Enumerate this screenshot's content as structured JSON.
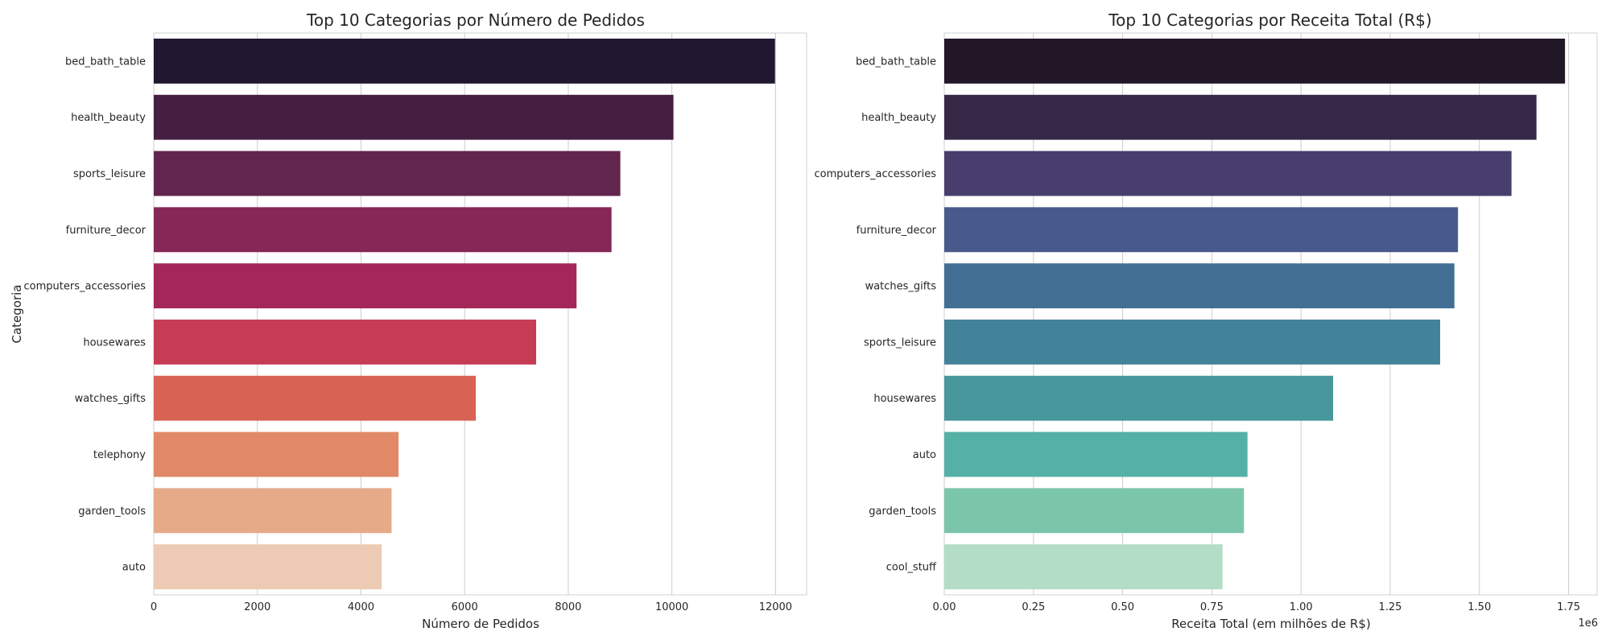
{
  "chart_data": [
    {
      "type": "bar",
      "orientation": "horizontal",
      "title": "Top 10 Categorias por Número de Pedidos",
      "xlabel": "Número de Pedidos",
      "ylabel": "Categoria",
      "xlim": [
        0,
        12600
      ],
      "xticks": [
        0,
        2000,
        4000,
        6000,
        8000,
        10000,
        12000
      ],
      "xtick_labels": [
        "0",
        "2000",
        "4000",
        "6000",
        "8000",
        "10000",
        "12000"
      ],
      "grid": "x",
      "categories": [
        "bed_bath_table",
        "health_beauty",
        "sports_leisure",
        "furniture_decor",
        "computers_accessories",
        "housewares",
        "watches_gifts",
        "telephony",
        "garden_tools",
        "auto"
      ],
      "values": [
        11990,
        10030,
        9005,
        8835,
        8160,
        7380,
        6215,
        4725,
        4590,
        4400
      ],
      "colors": [
        "#221731",
        "#441f42",
        "#62254d",
        "#852757",
        "#a4275a",
        "#c63c55",
        "#d86354",
        "#e18966",
        "#e7aa89",
        "#edcab3"
      ]
    },
    {
      "type": "bar",
      "orientation": "horizontal",
      "title": "Top 10 Categorias por Receita Total (R$)",
      "xlabel": "Receita Total (em milhões de R$)",
      "ylabel": "",
      "offset_text": "1e6",
      "xlim": [
        0,
        1.83
      ],
      "xticks": [
        0.0,
        0.25,
        0.5,
        0.75,
        1.0,
        1.25,
        1.5,
        1.75
      ],
      "xtick_labels": [
        "0.00",
        "0.25",
        "0.50",
        "0.75",
        "1.00",
        "1.25",
        "1.50",
        "1.75"
      ],
      "grid": "x",
      "categories": [
        "bed_bath_table",
        "health_beauty",
        "computers_accessories",
        "furniture_decor",
        "watches_gifts",
        "sports_leisure",
        "housewares",
        "auto",
        "garden_tools",
        "cool_stuff"
      ],
      "values": [
        1.74,
        1.66,
        1.59,
        1.44,
        1.43,
        1.39,
        1.09,
        0.85,
        0.84,
        0.78
      ],
      "colors": [
        "#221726",
        "#352947",
        "#473e6e",
        "#485a8c",
        "#436f95",
        "#438399",
        "#47979d",
        "#55b0a5",
        "#7bc6aa",
        "#b3ddc5"
      ]
    }
  ]
}
